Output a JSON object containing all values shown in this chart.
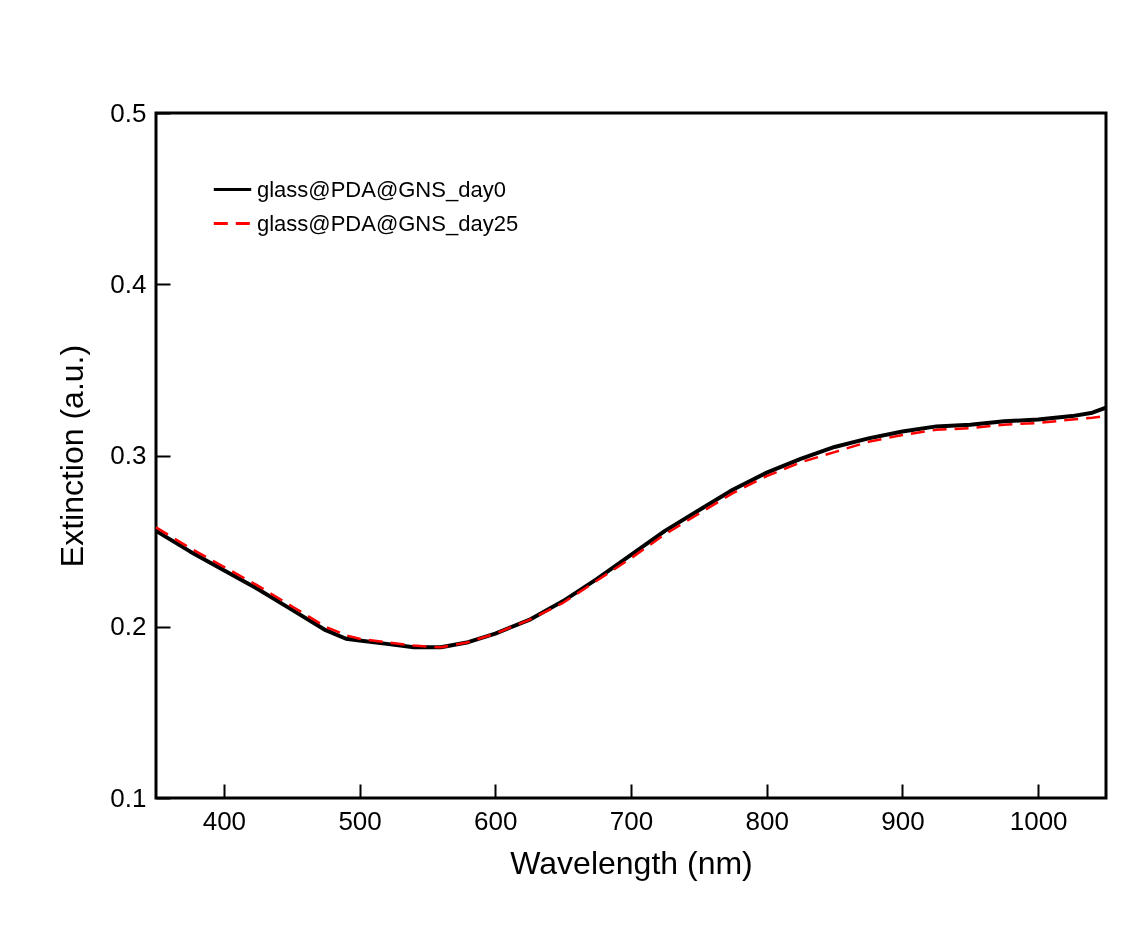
{
  "chart_data": {
    "type": "line",
    "xlabel": "Wavelength (nm)",
    "ylabel": "Extinction (a.u.)",
    "xlim": [
      350,
      1050
    ],
    "ylim": [
      0.1,
      0.5
    ],
    "xticks": [
      400,
      500,
      600,
      700,
      800,
      900,
      1000
    ],
    "yticks": [
      0.1,
      0.2,
      0.3,
      0.4,
      0.5
    ],
    "grid": false,
    "legend": "top left",
    "marker": "none",
    "x": [
      350,
      375,
      400,
      425,
      450,
      475,
      490,
      500,
      520,
      540,
      560,
      580,
      600,
      625,
      650,
      675,
      700,
      725,
      750,
      775,
      800,
      825,
      850,
      875,
      900,
      925,
      950,
      975,
      1000,
      1025,
      1040,
      1050
    ],
    "series": [
      {
        "name": "glass@PDA@GNS_day0",
        "color": "#000000",
        "line_style": "solid",
        "values": [
          0.256,
          0.244,
          0.233,
          0.222,
          0.21,
          0.198,
          0.193,
          0.192,
          0.19,
          0.188,
          0.188,
          0.191,
          0.196,
          0.204,
          0.215,
          0.228,
          0.242,
          0.256,
          0.268,
          0.28,
          0.29,
          0.298,
          0.305,
          0.31,
          0.314,
          0.317,
          0.318,
          0.32,
          0.321,
          0.323,
          0.325,
          0.328
        ]
      },
      {
        "name": "glass@PDA@GNS_day25",
        "color": "#ff0000",
        "line_style": "dashed",
        "values": [
          0.258,
          0.246,
          0.235,
          0.224,
          0.212,
          0.2,
          0.195,
          0.193,
          0.191,
          0.189,
          0.188,
          0.191,
          0.196,
          0.204,
          0.214,
          0.227,
          0.24,
          0.254,
          0.266,
          0.278,
          0.288,
          0.296,
          0.302,
          0.308,
          0.312,
          0.315,
          0.316,
          0.318,
          0.319,
          0.321,
          0.322,
          0.323
        ]
      }
    ]
  }
}
